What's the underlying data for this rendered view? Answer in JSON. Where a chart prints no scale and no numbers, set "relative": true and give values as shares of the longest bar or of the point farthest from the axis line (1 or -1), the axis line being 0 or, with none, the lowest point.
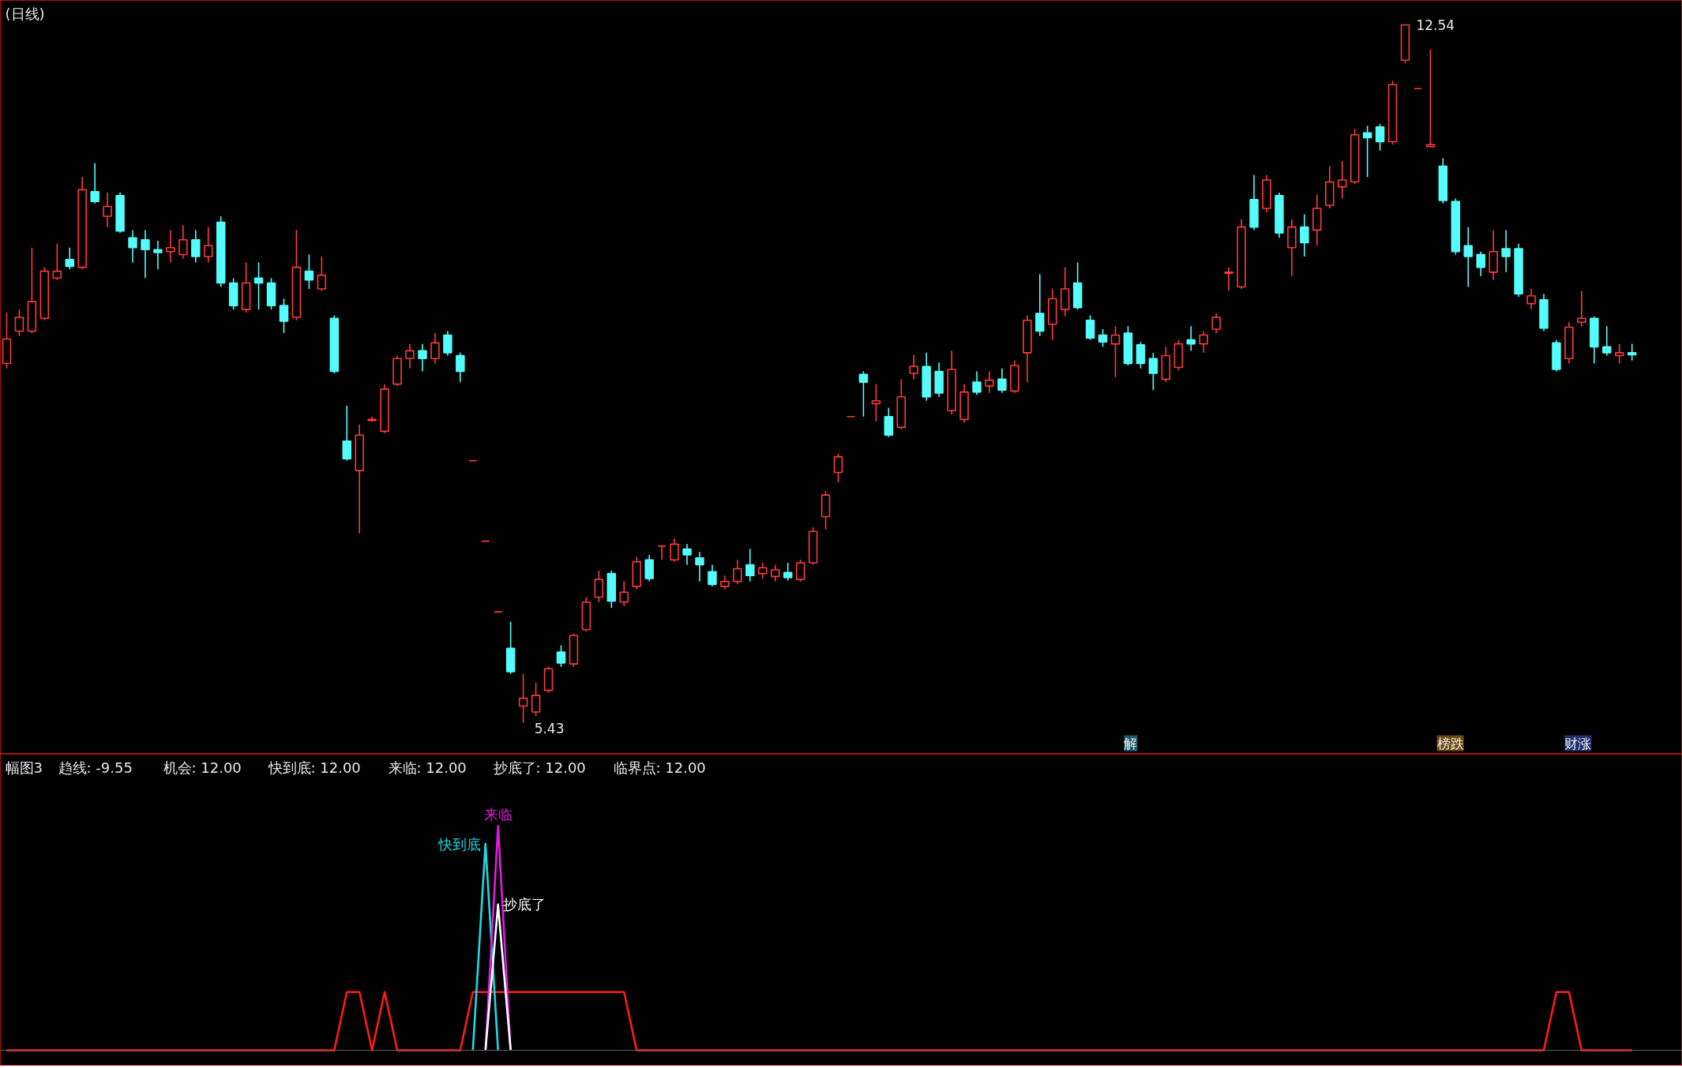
{
  "chart_data": [
    {
      "type": "candlestick",
      "title": "(日线)",
      "categories": [
        null,
        null,
        null,
        null,
        null,
        null,
        null,
        null,
        null,
        null,
        null,
        null,
        null,
        null,
        null,
        null,
        null,
        null,
        null,
        null,
        null,
        null,
        null,
        null,
        null,
        null,
        null,
        null,
        null,
        null,
        null,
        null,
        null,
        null,
        null,
        null,
        null,
        null,
        null,
        null,
        null,
        null,
        null,
        null,
        null,
        null,
        null,
        null,
        null,
        null,
        null,
        null,
        null,
        null,
        null,
        null,
        null,
        null,
        null,
        null,
        null,
        null,
        null,
        null,
        null,
        null,
        null,
        null,
        null,
        null,
        null,
        null,
        null,
        null,
        null,
        null,
        null,
        null,
        null,
        null,
        null,
        null,
        null,
        null,
        null,
        null,
        null,
        null,
        null,
        null,
        null,
        null,
        null,
        null,
        null,
        null,
        null,
        null,
        null,
        null,
        null,
        null,
        null,
        null,
        null,
        null,
        null,
        null,
        null,
        null,
        null,
        null,
        null,
        null,
        null,
        null,
        null,
        null,
        null,
        null,
        null,
        null,
        null,
        null,
        null,
        null,
        null,
        null,
        null,
        null
      ],
      "ohlc": [
        [
          9.09,
          9.61,
          9.04,
          9.34
        ],
        [
          9.42,
          9.64,
          9.37,
          9.56
        ],
        [
          9.42,
          10.27,
          9.4,
          9.72
        ],
        [
          9.55,
          10.07,
          9.53,
          10.03
        ],
        [
          9.96,
          10.31,
          9.94,
          10.03
        ],
        [
          10.15,
          10.27,
          10.05,
          10.08
        ],
        [
          10.07,
          10.99,
          10.05,
          10.86
        ],
        [
          10.84,
          11.13,
          10.72,
          10.74
        ],
        [
          10.59,
          10.83,
          10.48,
          10.69
        ],
        [
          10.8,
          10.83,
          10.42,
          10.44
        ],
        [
          10.37,
          10.45,
          10.12,
          10.27
        ],
        [
          10.35,
          10.45,
          9.96,
          10.25
        ],
        [
          10.25,
          10.34,
          10.05,
          10.22
        ],
        [
          10.23,
          10.45,
          10.12,
          10.27
        ],
        [
          10.2,
          10.5,
          10.16,
          10.35
        ],
        [
          10.35,
          10.45,
          10.12,
          10.18
        ],
        [
          10.18,
          10.48,
          10.12,
          10.29
        ],
        [
          10.53,
          10.59,
          9.87,
          9.91
        ],
        [
          9.91,
          9.96,
          9.64,
          9.68
        ],
        [
          9.64,
          10.12,
          9.61,
          9.91
        ],
        [
          9.96,
          10.12,
          9.64,
          9.91
        ],
        [
          9.91,
          9.96,
          9.64,
          9.68
        ],
        [
          9.68,
          9.75,
          9.4,
          9.52
        ],
        [
          9.56,
          10.45,
          9.53,
          10.07
        ],
        [
          10.03,
          10.2,
          9.85,
          9.94
        ],
        [
          9.85,
          10.18,
          9.83,
          9.99
        ],
        [
          9.55,
          9.58,
          8.99,
          9.01
        ],
        [
          8.3,
          8.66,
          8.1,
          8.12
        ],
        [
          8.0,
          8.47,
          7.36,
          8.36
        ],
        [
          8.51,
          8.55,
          8.5,
          8.52
        ],
        [
          8.4,
          8.88,
          8.38,
          8.83
        ],
        [
          8.88,
          9.17,
          8.86,
          9.14
        ],
        [
          9.14,
          9.29,
          9.04,
          9.22
        ],
        [
          9.22,
          9.29,
          9.01,
          9.14
        ],
        [
          9.14,
          9.4,
          9.09,
          9.3
        ],
        [
          9.38,
          9.42,
          9.17,
          9.2
        ],
        [
          9.17,
          9.2,
          8.9,
          9.01
        ],
        [
          8.1,
          8.1,
          8.1,
          8.1
        ],
        [
          7.28,
          7.28,
          7.28,
          7.28
        ],
        [
          6.56,
          6.56,
          6.56,
          6.56
        ],
        [
          6.19,
          6.46,
          5.93,
          5.95
        ],
        [
          5.6,
          5.93,
          5.43,
          5.68
        ],
        [
          5.54,
          5.84,
          5.5,
          5.71
        ],
        [
          5.76,
          6.0,
          5.74,
          5.98
        ],
        [
          6.15,
          6.22,
          6.0,
          6.04
        ],
        [
          6.03,
          6.34,
          6.0,
          6.32
        ],
        [
          6.38,
          6.71,
          6.36,
          6.66
        ],
        [
          6.71,
          6.98,
          6.66,
          6.89
        ],
        [
          6.95,
          6.98,
          6.6,
          6.67
        ],
        [
          6.66,
          6.87,
          6.62,
          6.76
        ],
        [
          6.82,
          7.12,
          6.79,
          7.07
        ],
        [
          7.09,
          7.14,
          6.87,
          6.9
        ],
        [
          7.23,
          7.23,
          7.09,
          7.23
        ],
        [
          7.09,
          7.31,
          7.07,
          7.25
        ],
        [
          7.2,
          7.25,
          7.04,
          7.14
        ],
        [
          7.11,
          7.17,
          6.87,
          7.04
        ],
        [
          6.97,
          7.04,
          6.82,
          6.84
        ],
        [
          6.82,
          6.93,
          6.79,
          6.87
        ],
        [
          6.87,
          7.09,
          6.84,
          7.0
        ],
        [
          7.04,
          7.2,
          6.87,
          6.93
        ],
        [
          6.95,
          7.06,
          6.9,
          7.01
        ],
        [
          6.92,
          7.04,
          6.87,
          6.99
        ],
        [
          6.96,
          7.06,
          6.88,
          6.91
        ],
        [
          6.89,
          7.09,
          6.87,
          7.06
        ],
        [
          7.06,
          7.42,
          7.04,
          7.38
        ],
        [
          7.53,
          7.79,
          7.4,
          7.75
        ],
        [
          7.98,
          8.17,
          7.88,
          8.14
        ],
        [
          8.55,
          8.55,
          8.55,
          8.55
        ],
        [
          8.98,
          9.01,
          8.55,
          8.9
        ],
        [
          8.68,
          8.88,
          8.5,
          8.71
        ],
        [
          8.55,
          8.64,
          8.34,
          8.36
        ],
        [
          8.44,
          8.93,
          8.42,
          8.75
        ],
        [
          8.99,
          9.18,
          8.93,
          9.06
        ],
        [
          9.06,
          9.2,
          8.71,
          8.75
        ],
        [
          9.01,
          9.1,
          8.75,
          8.79
        ],
        [
          8.61,
          9.22,
          8.57,
          9.03
        ],
        [
          8.52,
          8.88,
          8.49,
          8.8
        ],
        [
          8.9,
          9.01,
          8.77,
          8.8
        ],
        [
          8.86,
          9.01,
          8.79,
          8.92
        ],
        [
          8.93,
          9.04,
          8.79,
          8.82
        ],
        [
          8.81,
          9.12,
          8.79,
          9.07
        ],
        [
          9.2,
          9.58,
          8.9,
          9.53
        ],
        [
          9.6,
          10.0,
          9.37,
          9.42
        ],
        [
          9.49,
          9.85,
          9.33,
          9.75
        ],
        [
          9.64,
          10.07,
          9.57,
          9.85
        ],
        [
          9.91,
          10.12,
          9.64,
          9.66
        ],
        [
          9.53,
          9.58,
          9.33,
          9.35
        ],
        [
          9.38,
          9.44,
          9.26,
          9.31
        ],
        [
          9.29,
          9.47,
          8.95,
          9.38
        ],
        [
          9.4,
          9.47,
          9.07,
          9.09
        ],
        [
          9.28,
          9.31,
          9.04,
          9.09
        ],
        [
          9.14,
          9.2,
          8.82,
          8.99
        ],
        [
          8.93,
          9.26,
          8.9,
          9.17
        ],
        [
          9.05,
          9.33,
          9.02,
          9.29
        ],
        [
          9.33,
          9.47,
          9.22,
          9.29
        ],
        [
          9.29,
          9.42,
          9.2,
          9.38
        ],
        [
          9.44,
          9.6,
          9.4,
          9.56
        ],
        [
          10.01,
          10.07,
          9.83,
          10.02
        ],
        [
          9.87,
          10.56,
          9.85,
          10.48
        ],
        [
          10.76,
          11.01,
          10.45,
          10.48
        ],
        [
          10.67,
          11.01,
          10.63,
          10.96
        ],
        [
          10.8,
          10.83,
          10.37,
          10.42
        ],
        [
          10.27,
          10.56,
          9.98,
          10.48
        ],
        [
          10.48,
          10.61,
          10.18,
          10.32
        ],
        [
          10.45,
          10.81,
          10.29,
          10.67
        ],
        [
          10.7,
          11.1,
          10.67,
          10.94
        ],
        [
          10.89,
          11.15,
          10.77,
          10.96
        ],
        [
          10.94,
          11.48,
          10.92,
          11.42
        ],
        [
          11.44,
          11.51,
          10.99,
          11.39
        ],
        [
          11.5,
          11.53,
          11.26,
          11.35
        ],
        [
          11.35,
          11.97,
          11.32,
          11.93
        ],
        [
          12.18,
          12.54,
          12.15,
          12.54
        ],
        [
          11.89,
          11.89,
          11.89,
          11.89
        ],
        [
          11.3,
          12.29,
          11.3,
          11.32
        ],
        [
          11.1,
          11.18,
          10.72,
          10.75
        ],
        [
          10.74,
          10.77,
          10.2,
          10.23
        ],
        [
          10.29,
          10.48,
          9.87,
          10.18
        ],
        [
          10.2,
          10.23,
          9.98,
          10.07
        ],
        [
          10.02,
          10.45,
          9.94,
          10.23
        ],
        [
          10.26,
          10.45,
          10.02,
          10.18
        ],
        [
          10.26,
          10.31,
          9.77,
          9.8
        ],
        [
          9.7,
          9.85,
          9.64,
          9.78
        ],
        [
          9.74,
          9.8,
          9.42,
          9.45
        ],
        [
          9.3,
          9.33,
          9.01,
          9.03
        ],
        [
          9.14,
          9.51,
          9.09,
          9.46
        ],
        [
          9.51,
          9.83,
          9.47,
          9.55
        ],
        [
          9.55,
          9.57,
          9.09,
          9.26
        ],
        [
          9.26,
          9.47,
          9.17,
          9.2
        ],
        [
          9.17,
          9.29,
          9.09,
          9.2
        ],
        [
          9.2,
          9.29,
          9.12,
          9.18
        ]
      ],
      "annotations": [
        "12.54",
        "5.43",
        "解",
        "榜跌",
        "财涨"
      ]
    },
    {
      "type": "line",
      "title": "幅图3",
      "relative": true,
      "tick_labels": false,
      "marker": "none",
      "line_style": "solid",
      "categories": [
        null,
        null,
        null,
        null,
        null,
        null,
        null,
        null,
        null,
        null,
        null,
        null,
        null,
        null,
        null,
        null,
        null,
        null,
        null,
        null,
        null,
        null,
        null,
        null,
        null,
        null,
        null,
        null,
        null,
        null,
        null,
        null,
        null,
        null,
        null,
        null,
        null,
        null,
        null,
        null,
        null,
        null,
        null,
        null,
        null,
        null,
        null,
        null,
        null,
        null,
        null,
        null,
        null,
        null,
        null,
        null,
        null,
        null,
        null,
        null,
        null,
        null,
        null,
        null,
        null,
        null,
        null,
        null,
        null,
        null,
        null,
        null,
        null,
        null,
        null,
        null,
        null,
        null,
        null,
        null,
        null,
        null,
        null,
        null,
        null,
        null,
        null,
        null,
        null,
        null,
        null,
        null,
        null,
        null,
        null,
        null,
        null,
        null,
        null,
        null,
        null,
        null,
        null,
        null,
        null,
        null,
        null,
        null,
        null,
        null,
        null,
        null,
        null,
        null,
        null,
        null,
        null,
        null,
        null,
        null,
        null,
        null,
        null,
        null,
        null,
        null,
        null,
        null,
        null,
        null
      ],
      "annotations": [
        "趋线: -9.55",
        "机会: 12.00",
        "快到底: 12.00",
        "来临: 12.00",
        "抄底了: 12.00",
        "临界点: 12.00"
      ],
      "series": [
        {
          "color": "#ff1a1a",
          "values": [
            0,
            0,
            0,
            0,
            0,
            0,
            0,
            0,
            0,
            0,
            0,
            0,
            0,
            0,
            0,
            0,
            0,
            0,
            0,
            0,
            0,
            0,
            0,
            0,
            0,
            0,
            0,
            0.26,
            0.26,
            0,
            0.26,
            0,
            0,
            0,
            0,
            0,
            0,
            0.26,
            0.26,
            0.26,
            0.26,
            0.26,
            0.26,
            0.26,
            0.26,
            0.26,
            0.26,
            0.26,
            0.26,
            0.26,
            0,
            0,
            0,
            0,
            0,
            0,
            0,
            0,
            0,
            0,
            0,
            0,
            0,
            0,
            0,
            0,
            0,
            0,
            0,
            0,
            0,
            0,
            0,
            0,
            0,
            0,
            0,
            0,
            0,
            0,
            0,
            0,
            0,
            0,
            0,
            0,
            0,
            0,
            0,
            0,
            0,
            0,
            0,
            0,
            0,
            0,
            0,
            0,
            0,
            0,
            0,
            0,
            0,
            0,
            0,
            0,
            0,
            0,
            0,
            0,
            0,
            0,
            0,
            0,
            0,
            0,
            0,
            0,
            0,
            0,
            0,
            0,
            0,
            0.26,
            0.26,
            0,
            0,
            0,
            0,
            0
          ]
        },
        {
          "name": "快到底",
          "color": "#1ed8e6",
          "values": [
            null,
            null,
            null,
            null,
            null,
            null,
            null,
            null,
            null,
            null,
            null,
            null,
            null,
            null,
            null,
            null,
            null,
            null,
            null,
            null,
            null,
            null,
            null,
            null,
            null,
            null,
            null,
            null,
            null,
            null,
            null,
            null,
            null,
            null,
            null,
            null,
            null,
            0,
            0.92,
            0,
            null,
            null,
            null,
            null,
            null,
            null,
            null,
            null,
            null,
            null,
            null,
            null,
            null,
            null,
            null,
            null,
            null,
            null,
            null,
            null,
            null,
            null,
            null,
            null,
            null,
            null,
            null,
            null,
            null,
            null,
            null,
            null,
            null,
            null,
            null,
            null,
            null,
            null,
            null,
            null,
            null,
            null,
            null,
            null,
            null,
            null,
            null,
            null,
            null,
            null,
            null,
            null,
            null,
            null,
            null,
            null,
            null,
            null,
            null,
            null,
            null,
            null,
            null,
            null,
            null,
            null,
            null,
            null,
            null,
            null,
            null,
            null,
            null,
            null,
            null,
            null,
            null,
            null,
            null,
            null,
            null,
            null,
            null,
            null,
            null,
            null,
            null,
            null,
            null,
            null
          ]
        },
        {
          "name": "来临",
          "color": "#e01ee0",
          "values": [
            null,
            null,
            null,
            null,
            null,
            null,
            null,
            null,
            null,
            null,
            null,
            null,
            null,
            null,
            null,
            null,
            null,
            null,
            null,
            null,
            null,
            null,
            null,
            null,
            null,
            null,
            null,
            null,
            null,
            null,
            null,
            null,
            null,
            null,
            null,
            null,
            null,
            null,
            0,
            1,
            0,
            null,
            null,
            null,
            null,
            null,
            null,
            null,
            null,
            null,
            null,
            null,
            null,
            null,
            null,
            null,
            null,
            null,
            null,
            null,
            null,
            null,
            null,
            null,
            null,
            null,
            null,
            null,
            null,
            null,
            null,
            null,
            null,
            null,
            null,
            null,
            null,
            null,
            null,
            null,
            null,
            null,
            null,
            null,
            null,
            null,
            null,
            null,
            null,
            null,
            null,
            null,
            null,
            null,
            null,
            null,
            null,
            null,
            null,
            null,
            null,
            null,
            null,
            null,
            null,
            null,
            null,
            null,
            null,
            null,
            null,
            null,
            null,
            null,
            null,
            null,
            null,
            null,
            null,
            null,
            null,
            null,
            null,
            null,
            null,
            null,
            null,
            null,
            null,
            null
          ]
        },
        {
          "name": "抄底了",
          "color": "#ffffff",
          "values": [
            null,
            null,
            null,
            null,
            null,
            null,
            null,
            null,
            null,
            null,
            null,
            null,
            null,
            null,
            null,
            null,
            null,
            null,
            null,
            null,
            null,
            null,
            null,
            null,
            null,
            null,
            null,
            null,
            null,
            null,
            null,
            null,
            null,
            null,
            null,
            null,
            null,
            null,
            0,
            0.65,
            0,
            null,
            null,
            null,
            null,
            null,
            null,
            null,
            null,
            null,
            null,
            null,
            null,
            null,
            null,
            null,
            null,
            null,
            null,
            null,
            null,
            null,
            null,
            null,
            null,
            null,
            null,
            null,
            null,
            null,
            null,
            null,
            null,
            null,
            null,
            null,
            null,
            null,
            null,
            null,
            null,
            null,
            null,
            null,
            null,
            null,
            null,
            null,
            null,
            null,
            null,
            null,
            null,
            null,
            null,
            null,
            null,
            null,
            null,
            null,
            null,
            null,
            null,
            null,
            null,
            null,
            null,
            null,
            null,
            null,
            null,
            null,
            null,
            null,
            null,
            null,
            null,
            null,
            null,
            null,
            null,
            null,
            null,
            null,
            null,
            null,
            null,
            null,
            null,
            null
          ]
        }
      ]
    }
  ]
}
